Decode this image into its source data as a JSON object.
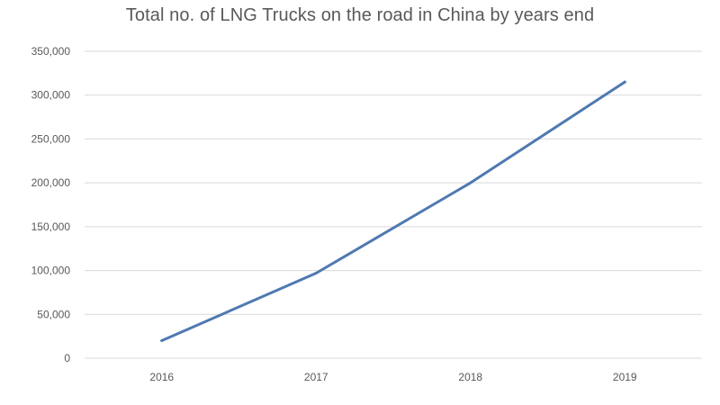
{
  "chart_data": {
    "type": "line",
    "title": "Total no. of LNG Trucks on the road in China by years end",
    "xlabel": "",
    "ylabel": "",
    "categories": [
      "2016",
      "2017",
      "2018",
      "2019"
    ],
    "series": [
      {
        "name": "LNG Trucks",
        "values": [
          20000,
          97000,
          200000,
          315000
        ],
        "color": "#4f79b1"
      }
    ],
    "ylim": [
      0,
      350000
    ],
    "ytick_values": [
      0,
      50000,
      100000,
      150000,
      200000,
      250000,
      300000,
      350000
    ],
    "ytick_labels": [
      "0",
      "50,000",
      "100,000",
      "150,000",
      "200,000",
      "250,000",
      "300,000",
      "350,000"
    ],
    "grid": true,
    "legend": "none"
  }
}
